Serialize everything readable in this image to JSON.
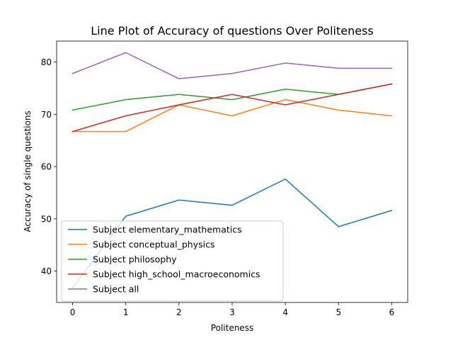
{
  "chart_data": {
    "type": "line",
    "title": "Line Plot of Accuracy of questions Over Politeness",
    "xlabel": "Politeness",
    "ylabel": "Accuracy of single questions",
    "x": [
      0,
      1,
      2,
      3,
      4,
      5,
      6
    ],
    "xlim": [
      -0.3,
      6.3
    ],
    "ylim": [
      34.0,
      84.0
    ],
    "xticks": [
      0,
      1,
      2,
      3,
      4,
      5,
      6
    ],
    "yticks": [
      40,
      50,
      60,
      70,
      80
    ],
    "grid": false,
    "legend_position": "lower-left",
    "series": [
      {
        "name": "Subject elementary_mathematics",
        "color": "#1f77b4",
        "values": [
          36.8,
          50.5,
          53.6,
          52.6,
          57.6,
          48.5,
          51.6
        ]
      },
      {
        "name": "Subject conceptual_physics",
        "color": "#ff7f0e",
        "values": [
          66.7,
          66.7,
          71.8,
          69.7,
          72.8,
          70.8,
          69.7
        ]
      },
      {
        "name": "Subject philosophy",
        "color": "#2ca02c",
        "values": [
          70.8,
          72.8,
          73.8,
          72.8,
          74.8,
          73.8,
          75.8
        ]
      },
      {
        "name": "Subject high_school_macroeconomics",
        "color": "#d62728",
        "values": [
          66.7,
          69.7,
          71.8,
          73.8,
          71.8,
          73.8,
          75.8
        ]
      },
      {
        "name": "Subject all",
        "color": "#9467bd",
        "values": [
          77.8,
          81.8,
          76.8,
          77.8,
          79.8,
          78.8,
          78.8
        ]
      }
    ]
  }
}
